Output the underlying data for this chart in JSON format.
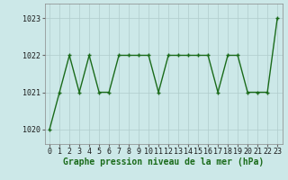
{
  "x": [
    0,
    1,
    2,
    3,
    4,
    5,
    6,
    7,
    8,
    9,
    10,
    11,
    12,
    13,
    14,
    15,
    16,
    17,
    18,
    19,
    20,
    21,
    22,
    23
  ],
  "y": [
    1020,
    1021,
    1022,
    1021,
    1022,
    1021,
    1021,
    1022,
    1022,
    1022,
    1022,
    1021,
    1022,
    1022,
    1022,
    1022,
    1022,
    1021,
    1022,
    1022,
    1021,
    1021,
    1021,
    1023
  ],
  "line_color": "#1a6b1a",
  "marker": "+",
  "marker_color": "#1a6b1a",
  "bg_color": "#cce8e8",
  "grid_color": "#b0cccc",
  "xlabel": "Graphe pression niveau de la mer (hPa)",
  "xlabel_fontsize": 7,
  "ylim": [
    1019.6,
    1023.4
  ],
  "xlim": [
    -0.5,
    23.5
  ],
  "yticks": [
    1020,
    1021,
    1022,
    1023
  ],
  "xticks": [
    0,
    1,
    2,
    3,
    4,
    5,
    6,
    7,
    8,
    9,
    10,
    11,
    12,
    13,
    14,
    15,
    16,
    17,
    18,
    19,
    20,
    21,
    22,
    23
  ],
  "tick_fontsize": 6,
  "line_width": 1.0,
  "marker_size": 3.5
}
